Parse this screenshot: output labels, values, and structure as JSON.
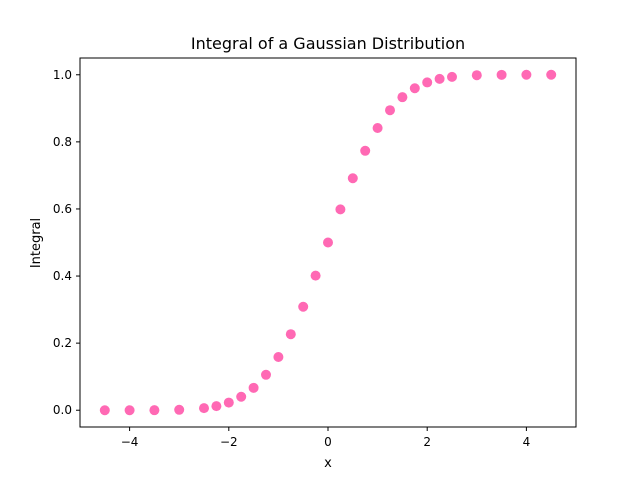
{
  "chart_data": {
    "type": "scatter",
    "title": "Integral of a Gaussian Distribution",
    "xlabel": "x",
    "ylabel": "Integral",
    "xlim": [
      -5,
      5
    ],
    "ylim": [
      -0.05,
      1.05
    ],
    "x_ticks": [
      -4,
      -2,
      0,
      2,
      4
    ],
    "x_tick_labels": [
      "−4",
      "−2",
      "0",
      "2",
      "4"
    ],
    "y_ticks": [
      0.0,
      0.2,
      0.4,
      0.6,
      0.8,
      1.0
    ],
    "y_tick_labels": [
      "0.0",
      "0.2",
      "0.4",
      "0.6",
      "0.8",
      "1.0"
    ],
    "grid": false,
    "legend": "none",
    "series": [
      {
        "color": "#ff69b4",
        "x": [
          -4.5,
          -4.0,
          -3.5,
          -3.0,
          -2.5,
          -2.25,
          -2.0,
          -1.75,
          -1.5,
          -1.25,
          -1.0,
          -0.75,
          -0.5,
          -0.25,
          0.0,
          0.25,
          0.5,
          0.75,
          1.0,
          1.25,
          1.5,
          1.75,
          2.0,
          2.25,
          2.5,
          3.0,
          3.5,
          4.0,
          4.5
        ],
        "y": [
          0.0,
          0.0,
          0.0002,
          0.0013,
          0.0062,
          0.0122,
          0.0228,
          0.0401,
          0.0668,
          0.1056,
          0.1587,
          0.2266,
          0.3085,
          0.4013,
          0.5,
          0.5987,
          0.6915,
          0.7734,
          0.8413,
          0.8944,
          0.9332,
          0.9599,
          0.9772,
          0.9878,
          0.9938,
          0.9987,
          0.9998,
          1.0,
          1.0
        ]
      }
    ]
  }
}
